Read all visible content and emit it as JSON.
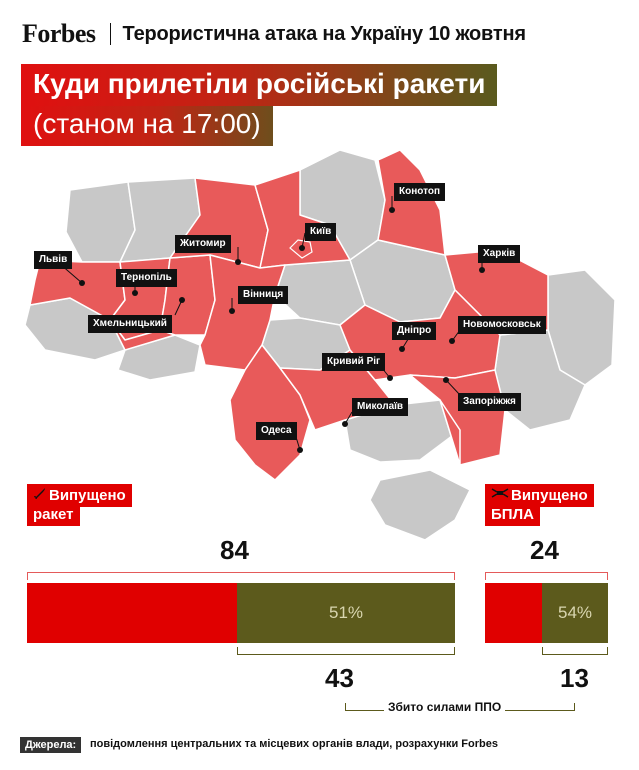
{
  "header": {
    "brand": "Forbes",
    "title": "Терористична атака на Україну 10 жовтня"
  },
  "title": {
    "line1": "Куди прилетіли російські ракети",
    "line2": "(станом на 17:00)"
  },
  "map": {
    "colors": {
      "hit": "#e85a5a",
      "not_hit": "#c8c8c8",
      "border": "#ffffff"
    },
    "cities": [
      {
        "id": "konotop",
        "label": "Конотоп"
      },
      {
        "id": "kyiv",
        "label": "Київ"
      },
      {
        "id": "zhytomyr",
        "label": "Житомир"
      },
      {
        "id": "lviv",
        "label": "Львів"
      },
      {
        "id": "ternopil",
        "label": "Тернопіль"
      },
      {
        "id": "kharkiv",
        "label": "Харків"
      },
      {
        "id": "vinnytsia",
        "label": "Вінниця"
      },
      {
        "id": "khmelnytskyi",
        "label": "Хмельницький"
      },
      {
        "id": "dnipro",
        "label": "Дніпро"
      },
      {
        "id": "novomoskovsk",
        "label": "Новомосковськ"
      },
      {
        "id": "kryvyi_rih",
        "label": "Кривий Ріг"
      },
      {
        "id": "zaporizhzhia",
        "label": "Запоріжжя"
      },
      {
        "id": "mykolaiv",
        "label": "Миколаїв"
      },
      {
        "id": "odesa",
        "label": "Одеса"
      }
    ]
  },
  "missiles": {
    "label_line1": "Випущено",
    "label_line2": "ракет",
    "icon": "missile-icon",
    "launched": 84,
    "shot_down": 43,
    "shot_down_share": 0.51,
    "percent_label": "51%"
  },
  "drones": {
    "label_line1": "Випущено",
    "label_line2": "БПЛА",
    "icon": "drone-icon",
    "launched": 24,
    "shot_down": 13,
    "shot_down_share": 0.54,
    "percent_label": "54%"
  },
  "legend": {
    "shot_down_caption": "Збито силами ППО"
  },
  "sources": {
    "label": "Джерела:",
    "text": "повідомлення центральних та місцевих органів влади, розрахунки Forbes"
  },
  "colors": {
    "red": "#e00000",
    "olive": "#5c5a1c"
  }
}
